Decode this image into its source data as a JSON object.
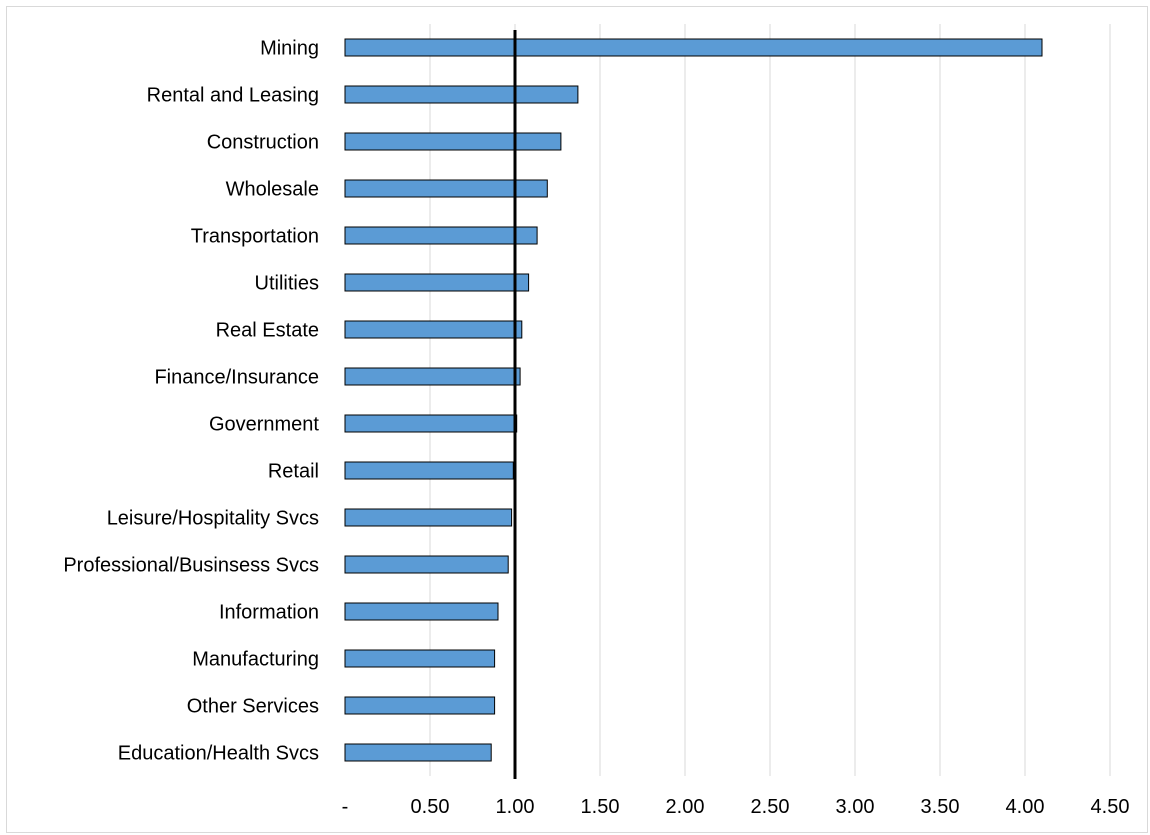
{
  "chart_data": {
    "type": "bar",
    "orientation": "horizontal",
    "categories": [
      "Mining",
      "Rental and Leasing",
      "Construction",
      "Wholesale",
      "Transportation",
      "Utilities",
      "Real Estate",
      "Finance/Insurance",
      "Government",
      "Retail",
      "Leisure/Hospitality Svcs",
      "Professional/Businsess Svcs",
      "Information",
      "Manufacturing",
      "Other Services",
      "Education/Health Svcs"
    ],
    "values": [
      4.1,
      1.37,
      1.27,
      1.19,
      1.13,
      1.08,
      1.04,
      1.03,
      1.01,
      0.99,
      0.98,
      0.96,
      0.9,
      0.88,
      0.88,
      0.86
    ],
    "xlim": [
      0,
      4.5
    ],
    "xticks": [
      0,
      0.5,
      1.0,
      1.5,
      2.0,
      2.5,
      3.0,
      3.5,
      4.0,
      4.5
    ],
    "xtick_labels": [
      "-",
      "0.50",
      "1.00",
      "1.50",
      "2.00",
      "2.50",
      "3.00",
      "3.50",
      "4.00",
      "4.50"
    ],
    "reference_line": 1.0,
    "gridlines": "vertical",
    "colors": {
      "bar_fill": "#5b9bd5",
      "bar_stroke": "#000000",
      "gridline": "#d9d9d9",
      "reference_line": "#000000"
    },
    "title": "",
    "xlabel": "",
    "ylabel": ""
  }
}
